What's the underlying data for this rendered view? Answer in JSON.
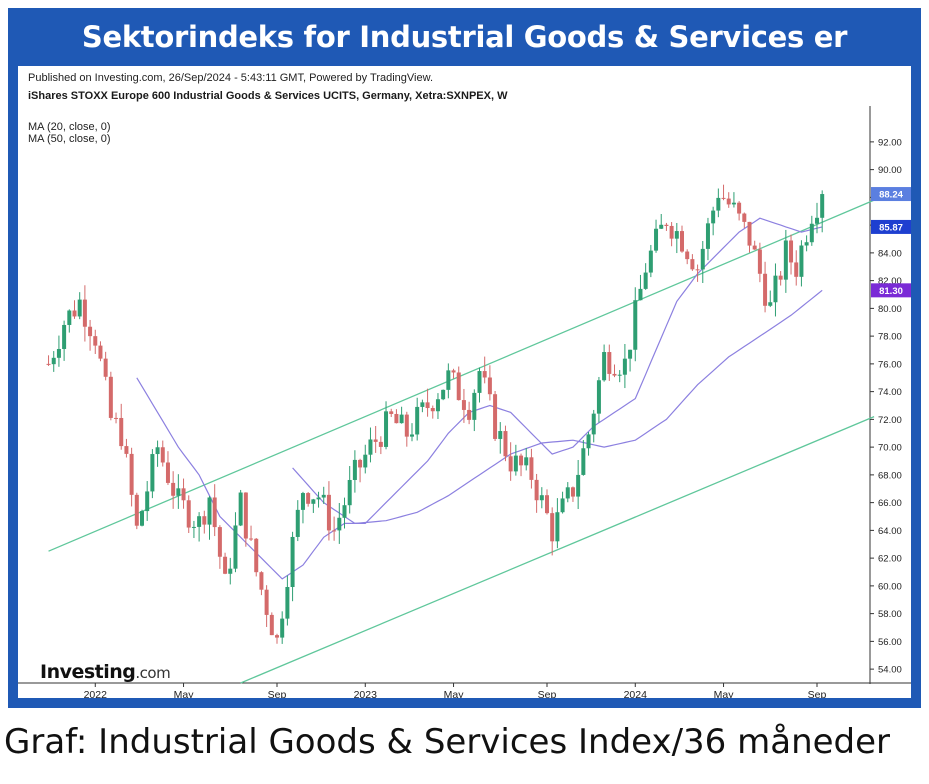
{
  "banner": {
    "title": "Sektorindeks for Industrial Goods & Services er stigende"
  },
  "caption": "Graf: Industrial Goods & Services Index/36 måneder",
  "header": {
    "published": "Published on Investing.com, 26/Sep/2024 - 5:43:11 GMT, Powered by TradingView.",
    "instrument": "iShares STOXX Europe 600 Industrial Goods & Services UCITS, Germany, Xetra:SXNPEX, W",
    "ma20_label": "MA (20, close, 0)",
    "ma50_label": "MA (50, close, 0)"
  },
  "logo": {
    "brand": "Investing",
    "suffix": ".com"
  },
  "colors": {
    "up": "#2e9e72",
    "down": "#d46a6a",
    "ma": "#8c80e0",
    "channel": "#5fc79b",
    "price_tag": "#5b7fe0",
    "ma20_tag": "#1e3fd0",
    "ma50_tag": "#7a2ad6"
  },
  "chart_data": {
    "type": "candlestick",
    "interval": "weekly",
    "ylim": [
      53,
      93
    ],
    "y_ticks": [
      "92.00",
      "90.00",
      "88.00",
      "86.00",
      "84.00",
      "82.00",
      "80.00",
      "78.00",
      "76.00",
      "74.00",
      "72.00",
      "70.00",
      "68.00",
      "66.00",
      "64.00",
      "62.00",
      "60.00",
      "58.00",
      "56.00",
      "54.00"
    ],
    "x_tick_labels": [
      "2022",
      "May",
      "Sep",
      "2023",
      "May",
      "Sep",
      "2024",
      "May",
      "Sep"
    ],
    "x_tick_weeks": [
      0,
      17,
      35,
      52,
      69,
      87,
      104,
      121,
      139
    ],
    "last_price_label": "88.24",
    "ma20_last_label": "85.87",
    "ma50_last_label": "81.30",
    "keypoints_weeks": [
      -9,
      -6,
      -3,
      0,
      3,
      5,
      8,
      12,
      16,
      20,
      22,
      25,
      28,
      31,
      35,
      37,
      40,
      43,
      46,
      50,
      53,
      57,
      60,
      64,
      68,
      72,
      74,
      77,
      80,
      84,
      88,
      92,
      95,
      98,
      102,
      106,
      110,
      113,
      116,
      120,
      123,
      126,
      130,
      133,
      135,
      138,
      140
    ],
    "keypoints_close": [
      76,
      79,
      80.5,
      78,
      72,
      71,
      64,
      70,
      66,
      64.5,
      66.5,
      60,
      66,
      61,
      56,
      61,
      67,
      66.5,
      64,
      68,
      70,
      72,
      71,
      73,
      75,
      73,
      75.5,
      71.5,
      69,
      68,
      64,
      67,
      71,
      76.5,
      76,
      83,
      86.5,
      85,
      83,
      88.5,
      87,
      85,
      80,
      84,
      83,
      87,
      88.24
    ],
    "ma20_keypoints_weeks": [
      8,
      12,
      16,
      20,
      24,
      28,
      32,
      36,
      40,
      44,
      48,
      52,
      56,
      60,
      64,
      68,
      72,
      76,
      80,
      84,
      88,
      92,
      96,
      100,
      104,
      108,
      112,
      116,
      120,
      124,
      128,
      132,
      136,
      140
    ],
    "ma20_keypoints": [
      75,
      72.5,
      70,
      68,
      65,
      63.5,
      62,
      60.5,
      61.5,
      63.5,
      64.5,
      64.5,
      66,
      67.5,
      69,
      71,
      72.5,
      73,
      72.5,
      71,
      69.5,
      70,
      71.5,
      72.5,
      73.5,
      77,
      80.5,
      82.5,
      84,
      85.5,
      86.5,
      86,
      85.5,
      85.87
    ],
    "ma50_keypoints_weeks": [
      38,
      44,
      50,
      56,
      62,
      68,
      74,
      80,
      86,
      92,
      98,
      104,
      110,
      116,
      122,
      128,
      134,
      140
    ],
    "ma50_keypoints": [
      68.5,
      66,
      64.5,
      64.7,
      65.3,
      66.5,
      68,
      69.5,
      70.3,
      70.5,
      70,
      70.5,
      72,
      74.5,
      76.5,
      78,
      79.5,
      81.3
    ],
    "channel_lines": [
      {
        "name": "",
        "w1": -9,
        "v1": 62.5,
        "w2": 150,
        "v2": 87.8
      },
      {
        "name": "",
        "w1": 28,
        "v1": 53,
        "w2": 150,
        "v2": 72.2
      }
    ]
  }
}
